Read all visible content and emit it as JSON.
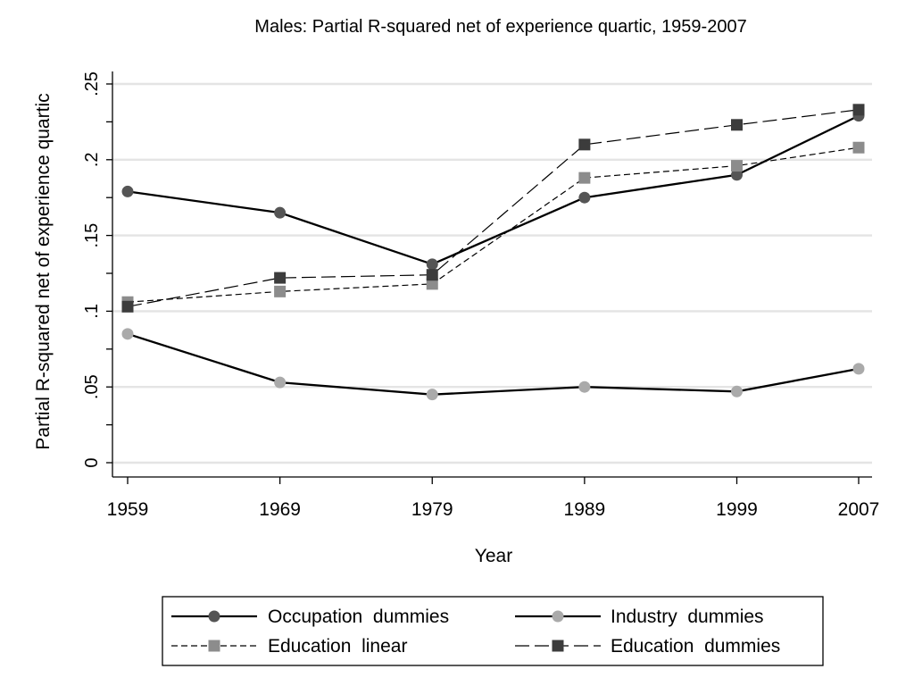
{
  "chart_data": {
    "type": "line",
    "title": "Males: Partial R-squared net of experience quartic, 1959-2007",
    "xlabel": "Year",
    "ylabel": "Partial R-squared net of experience quartic",
    "x": [
      1959,
      1969,
      1979,
      1989,
      1999,
      2007
    ],
    "x_tick_labels": [
      "1959",
      "1969",
      "1979",
      "1989",
      "1999",
      "2007"
    ],
    "ylim": [
      0,
      0.25
    ],
    "y_ticks": [
      0,
      0.05,
      0.1,
      0.15,
      0.2,
      0.25
    ],
    "y_tick_labels": [
      "0",
      ".05",
      ".1",
      ".15",
      ".2",
      ".25"
    ],
    "y_minor_ticks": [
      0.025,
      0.075,
      0.125,
      0.175,
      0.225
    ],
    "grid": true,
    "legend_position": "bottom",
    "series": [
      {
        "name": "Occupation  dummies",
        "values": [
          0.179,
          0.165,
          0.131,
          0.175,
          0.19,
          0.229
        ],
        "color": "#555555",
        "line": "solid",
        "marker": "circle"
      },
      {
        "name": "Industry  dummies",
        "values": [
          0.085,
          0.053,
          0.045,
          0.05,
          0.047,
          0.062
        ],
        "color": "#aaaaaa",
        "line": "solid",
        "marker": "circle"
      },
      {
        "name": "Education  linear",
        "values": [
          0.106,
          0.113,
          0.118,
          0.188,
          0.196,
          0.208
        ],
        "color": "#8c8c8c",
        "line": "short-dash",
        "marker": "square"
      },
      {
        "name": "Education  dummies",
        "values": [
          0.103,
          0.122,
          0.124,
          0.21,
          0.223,
          0.233
        ],
        "color": "#3c3c3c",
        "line": "long-dash",
        "marker": "square"
      }
    ]
  }
}
